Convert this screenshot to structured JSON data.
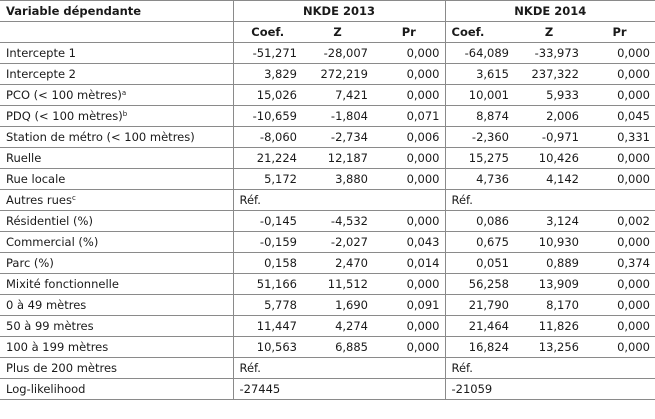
{
  "header": {
    "variable_label": "Variable dépendante",
    "group_2013": "NKDE 2013",
    "group_2014": "NKDE 2014",
    "sub_coef": "Coef.",
    "sub_z": "Z",
    "sub_pr": "Pr"
  },
  "rows": [
    {
      "label": "Intercepte 1",
      "sup": "",
      "v": [
        "-51,271",
        "-28,007",
        "0,000",
        "-64,089",
        "-33,973",
        "0,000"
      ]
    },
    {
      "label": "Intercepte 2",
      "sup": "",
      "v": [
        "3,829",
        "272,219",
        "0,000",
        "3,615",
        "237,322",
        "0,000"
      ]
    },
    {
      "label": "PCO (< 100 mètres)",
      "sup": "a",
      "v": [
        "15,026",
        "7,421",
        "0,000",
        "10,001",
        "5,933",
        "0,000"
      ]
    },
    {
      "label": "PDQ (< 100 mètres)",
      "sup": "b",
      "v": [
        "-10,659",
        "-1,804",
        "0,071",
        "8,874",
        "2,006",
        "0,045"
      ]
    },
    {
      "label": "Station de métro (< 100 mètres)",
      "sup": "",
      "v": [
        "-8,060",
        "-2,734",
        "0,006",
        "-2,360",
        "-0,971",
        "0,331"
      ]
    },
    {
      "label": "Ruelle",
      "sup": "",
      "v": [
        "21,224",
        "12,187",
        "0,000",
        "15,275",
        "10,426",
        "0,000"
      ]
    },
    {
      "label": "Rue locale",
      "sup": "",
      "v": [
        "5,172",
        "3,880",
        "0,000",
        "4,736",
        "4,142",
        "0,000"
      ]
    },
    {
      "label": "Autres rues",
      "sup": "c",
      "ref": true,
      "v": [
        "Réf.",
        "",
        "",
        "Réf.",
        "",
        ""
      ]
    },
    {
      "label": "Résidentiel (%)",
      "sup": "",
      "v": [
        "-0,145",
        "-4,532",
        "0,000",
        "0,086",
        "3,124",
        "0,002"
      ]
    },
    {
      "label": "Commercial (%)",
      "sup": "",
      "v": [
        "-0,159",
        "-2,027",
        "0,043",
        "0,675",
        "10,930",
        "0,000"
      ]
    },
    {
      "label": "Parc (%)",
      "sup": "",
      "v": [
        "0,158",
        "2,470",
        "0,014",
        "0,051",
        "0,889",
        "0,374"
      ]
    },
    {
      "label": "Mixité fonctionnelle",
      "sup": "",
      "v": [
        "51,166",
        "11,512",
        "0,000",
        "56,258",
        "13,909",
        "0,000"
      ]
    },
    {
      "label": "0 à 49 mètres",
      "sup": "",
      "v": [
        "5,778",
        "1,690",
        "0,091",
        "21,790",
        "8,170",
        "0,000"
      ]
    },
    {
      "label": "50 à 99 mètres",
      "sup": "",
      "v": [
        "11,447",
        "4,274",
        "0,000",
        "21,464",
        "11,826",
        "0,000"
      ]
    },
    {
      "label": "100 à 199 mètres",
      "sup": "",
      "v": [
        "10,563",
        "6,885",
        "0,000",
        "16,824",
        "13,256",
        "0,000"
      ]
    },
    {
      "label": "Plus de 200 mètres",
      "sup": "",
      "ref": true,
      "v": [
        "Réf.",
        "",
        "",
        "Réf.",
        "",
        ""
      ]
    },
    {
      "label": "Log-likelihood",
      "sup": "",
      "ref": true,
      "v": [
        "-27445",
        "",
        "",
        "-21059",
        "",
        ""
      ]
    }
  ]
}
